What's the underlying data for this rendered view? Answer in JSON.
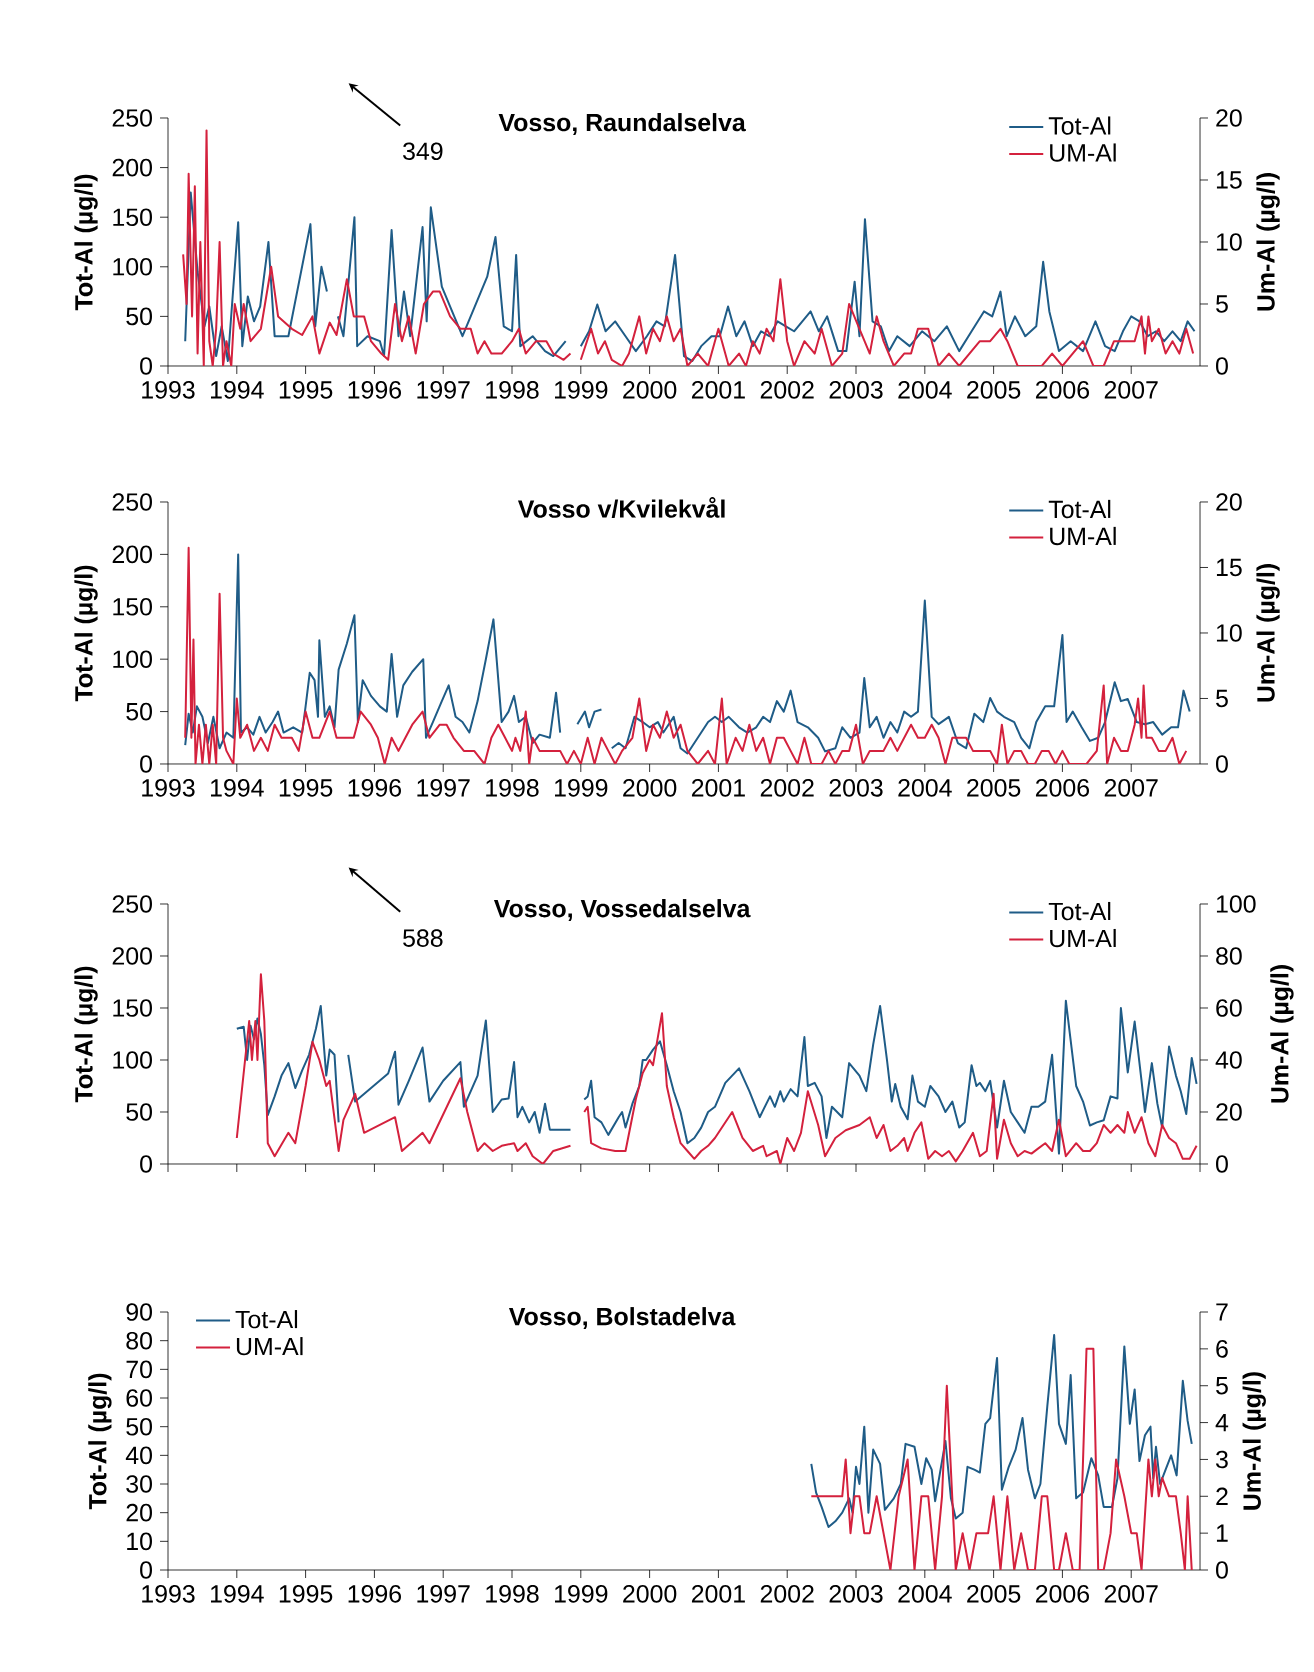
{
  "chart_data": [
    {
      "type": "line",
      "title": "Vosso, Raundalselva",
      "ylabel": "Tot-Al (µg/l)",
      "y2label": "Um-Al (µg/l)",
      "marker": "none",
      "legend": "top right",
      "xlim": [
        1993,
        2008
      ],
      "xticks": [
        1993,
        1994,
        1995,
        1996,
        1997,
        1998,
        1999,
        2000,
        2001,
        2002,
        2003,
        2004,
        2005,
        2006,
        2007
      ],
      "ylim": [
        0,
        250
      ],
      "yticks": [
        0,
        50,
        100,
        150,
        200,
        250
      ],
      "y2lim": [
        0,
        20
      ],
      "y2ticks": [
        0,
        5,
        10,
        15,
        20
      ],
      "annotations": [
        "349"
      ],
      "series": [
        {
          "name": "Tot-Al",
          "color": "#1f5c87",
          "x": [
            1993.25,
            1993.33,
            1993.43,
            1993.53,
            1993.6,
            1993.7,
            1993.78,
            1993.87,
            1994.02,
            1994.08,
            1994.16,
            1994.25,
            1994.34,
            1994.46,
            1994.55,
            1994.75,
            1995.07,
            1995.14,
            1995.23,
            1995.31,
            1995.38,
            1995.47,
            1995.55,
            1995.71,
            1995.75,
            1995.9,
            1996.08,
            1996.14,
            1996.25,
            1996.35,
            1996.43,
            1996.52,
            1996.7,
            1996.76,
            1996.82,
            1996.98,
            1997.16,
            1997.28,
            1997.46,
            1997.64,
            1997.76,
            1997.88,
            1998.0,
            1998.06,
            1998.12,
            1998.3,
            1998.48,
            1998.6,
            1998.78,
            1998.9,
            1999.0,
            1999.12,
            1999.24,
            1999.36,
            1999.5,
            1999.65,
            1999.8,
            1999.96,
            2000.1,
            2000.22,
            2000.37,
            2000.5,
            2000.62,
            2000.75,
            2000.9,
            2001.02,
            2001.14,
            2001.26,
            2001.38,
            2001.5,
            2001.62,
            2001.74,
            2001.86,
            2001.98,
            2002.1,
            2002.22,
            2002.34,
            2002.46,
            2002.58,
            2002.74,
            2002.86,
            2002.98,
            2003.05,
            2003.13,
            2003.24,
            2003.36,
            2003.48,
            2003.6,
            2003.78,
            2003.96,
            2004.14,
            2004.32,
            2004.5,
            2004.68,
            2004.86,
            2004.98,
            2005.1,
            2005.19,
            2005.31,
            2005.46,
            2005.62,
            2005.72,
            2005.81,
            2005.95,
            2006.12,
            2006.3,
            2006.48,
            2006.62,
            2006.76,
            2006.88,
            2007.0,
            2007.12,
            2007.24,
            2007.36,
            2007.48,
            2007.6,
            2007.72,
            2007.82,
            2007.92
          ],
          "values": [
            25,
            175,
            95,
            40,
            60,
            10,
            40,
            5,
            145,
            20,
            70,
            45,
            60,
            125,
            30,
            30,
            143,
            40,
            100,
            75,
            null,
            50,
            30,
            150,
            20,
            30,
            25,
            10,
            137,
            30,
            75,
            30,
            140,
            45,
            160,
            80,
            50,
            30,
            60,
            90,
            130,
            40,
            35,
            112,
            20,
            30,
            15,
            10,
            25,
            null,
            20,
            35,
            62,
            35,
            45,
            30,
            15,
            30,
            45,
            40,
            112,
            10,
            5,
            20,
            30,
            30,
            60,
            30,
            45,
            20,
            35,
            30,
            45,
            40,
            35,
            45,
            55,
            35,
            50,
            15,
            15,
            85,
            30,
            148,
            45,
            40,
            15,
            30,
            20,
            35,
            25,
            40,
            15,
            35,
            55,
            50,
            75,
            30,
            50,
            30,
            40,
            105,
            55,
            15,
            25,
            15,
            45,
            20,
            15,
            35,
            50,
            45,
            30,
            35,
            25,
            35,
            25,
            45,
            35
          ]
        },
        {
          "name": "UM-Al",
          "color": "#d4213d",
          "axis": "y2",
          "x": [
            1993.22,
            1993.27,
            1993.3,
            1993.35,
            1993.39,
            1993.43,
            1993.47,
            1993.52,
            1993.56,
            1993.6,
            1993.65,
            1993.7,
            1993.75,
            1993.8,
            1993.85,
            1993.92,
            1993.97,
            1994.05,
            1994.1,
            1994.2,
            1994.35,
            1994.5,
            1994.6,
            1994.8,
            1994.95,
            1995.1,
            1995.2,
            1995.35,
            1995.45,
            1995.6,
            1995.7,
            1995.85,
            1995.95,
            1996.1,
            1996.2,
            1996.3,
            1996.4,
            1996.5,
            1996.6,
            1996.72,
            1996.85,
            1996.95,
            1997.1,
            1997.25,
            1997.4,
            1997.5,
            1997.6,
            1997.7,
            1997.85,
            1998.0,
            1998.1,
            1998.2,
            1998.35,
            1998.5,
            1998.6,
            1998.75,
            1998.85,
            1998.92,
            1999.0,
            1999.15,
            1999.25,
            1999.35,
            1999.45,
            1999.6,
            1999.7,
            1999.85,
            1999.95,
            2000.05,
            2000.15,
            2000.25,
            2000.35,
            2000.45,
            2000.55,
            2000.7,
            2000.85,
            2001.0,
            2001.15,
            2001.3,
            2001.4,
            2001.5,
            2001.6,
            2001.7,
            2001.8,
            2001.9,
            2002.0,
            2002.1,
            2002.25,
            2002.4,
            2002.5,
            2002.65,
            2002.8,
            2002.9,
            2003.05,
            2003.2,
            2003.3,
            2003.4,
            2003.55,
            2003.7,
            2003.8,
            2003.9,
            2004.05,
            2004.2,
            2004.35,
            2004.5,
            2004.65,
            2004.8,
            2004.95,
            2005.1,
            2005.2,
            2005.35,
            2005.5,
            2005.7,
            2005.85,
            2006.0,
            2006.15,
            2006.3,
            2006.45,
            2006.6,
            2006.75,
            2006.9,
            2007.05,
            2007.15,
            2007.2,
            2007.25,
            2007.3,
            2007.4,
            2007.5,
            2007.6,
            2007.7,
            2007.8,
            2007.9
          ],
          "values": [
            9,
            5,
            15.5,
            4,
            14.5,
            1,
            10,
            0,
            19,
            2,
            0,
            3,
            10,
            0,
            2,
            0,
            5,
            3,
            5,
            2,
            3,
            8,
            4,
            3,
            2.5,
            4,
            1,
            3.5,
            2.5,
            7,
            4,
            4,
            2,
            1,
            0.5,
            5,
            2,
            4,
            1,
            5,
            6,
            6,
            4,
            3,
            3,
            1,
            2,
            1,
            1,
            2,
            3,
            1,
            2,
            2,
            1,
            0.5,
            1,
            null,
            0.5,
            3,
            1,
            2,
            0.5,
            0,
            1,
            4,
            1,
            3,
            2,
            4,
            2,
            3,
            0,
            1,
            0,
            3,
            0,
            1,
            0,
            2,
            1,
            3,
            2,
            7,
            2,
            0,
            2,
            1,
            3,
            0,
            1,
            5,
            3,
            1,
            4,
            2,
            0,
            1,
            1,
            3,
            3,
            0,
            1,
            0,
            1,
            2,
            2,
            3,
            2,
            0,
            0,
            0,
            1,
            0,
            1,
            2,
            0,
            0,
            2,
            2,
            2,
            4,
            1,
            4,
            2,
            3,
            1,
            2,
            1,
            3,
            1
          ]
        }
      ]
    },
    {
      "type": "line",
      "title": "Vosso v/Kvilekvål",
      "ylabel": "Tot-Al (µg/l)",
      "y2label": "Um-Al (µg/l)",
      "marker": "none",
      "legend": "top right",
      "xlim": [
        1993,
        2008
      ],
      "xticks": [
        1993,
        1994,
        1995,
        1996,
        1997,
        1998,
        1999,
        2000,
        2001,
        2002,
        2003,
        2004,
        2005,
        2006,
        2007
      ],
      "ylim": [
        0,
        250
      ],
      "yticks": [
        0,
        50,
        100,
        150,
        200,
        250
      ],
      "y2lim": [
        0,
        20
      ],
      "y2ticks": [
        0,
        5,
        10,
        15,
        20
      ],
      "series": [
        {
          "name": "Tot-Al",
          "color": "#1f5c87",
          "x": [
            1993.25,
            1993.3,
            1993.36,
            1993.42,
            1993.5,
            1993.58,
            1993.66,
            1993.75,
            1993.85,
            1993.95,
            1994.02,
            1994.06,
            1994.15,
            1994.24,
            1994.33,
            1994.42,
            1994.52,
            1994.6,
            1994.68,
            1994.82,
            1994.95,
            1995.0,
            1995.06,
            1995.13,
            1995.18,
            1995.2,
            1995.28,
            1995.35,
            1995.42,
            1995.48,
            1995.6,
            1995.71,
            1995.76,
            1995.83,
            1995.95,
            1996.08,
            1996.18,
            1996.25,
            1996.33,
            1996.42,
            1996.55,
            1996.71,
            1996.75,
            1996.85,
            1996.98,
            1997.08,
            1997.18,
            1997.28,
            1997.38,
            1997.5,
            1997.62,
            1997.73,
            1997.85,
            1997.95,
            1998.03,
            1998.1,
            1998.2,
            1998.3,
            1998.4,
            1998.55,
            1998.64,
            1998.7,
            1998.8,
            1998.95,
            1999.06,
            1999.12,
            1999.2,
            1999.3,
            1999.38,
            1999.45,
            1999.55,
            1999.65,
            1999.78,
            1999.9,
            2000.0,
            2000.12,
            2000.2,
            2000.35,
            2000.45,
            2000.55,
            2000.7,
            2000.85,
            2000.95,
            2001.05,
            2001.15,
            2001.3,
            2001.42,
            2001.55,
            2001.65,
            2001.75,
            2001.85,
            2001.95,
            2002.05,
            2002.15,
            2002.3,
            2002.45,
            2002.55,
            2002.7,
            2002.8,
            2002.92,
            2003.05,
            2003.12,
            2003.2,
            2003.3,
            2003.4,
            2003.5,
            2003.6,
            2003.7,
            2003.8,
            2003.9,
            2004.0,
            2004.1,
            2004.2,
            2004.35,
            2004.48,
            2004.6,
            2004.72,
            2004.85,
            2004.95,
            2005.05,
            2005.15,
            2005.3,
            2005.4,
            2005.52,
            2005.62,
            2005.75,
            2005.88,
            2006.0,
            2006.06,
            2006.15,
            2006.28,
            2006.4,
            2006.52,
            2006.62,
            2006.76,
            2006.85,
            2006.95,
            2007.08,
            2007.2,
            2007.32,
            2007.45,
            2007.58,
            2007.68,
            2007.76,
            2007.85
          ],
          "values": [
            18,
            48,
            30,
            55,
            45,
            20,
            45,
            15,
            30,
            25,
            200,
            30,
            35,
            28,
            45,
            30,
            40,
            50,
            30,
            35,
            30,
            55,
            87,
            80,
            45,
            118,
            45,
            55,
            35,
            90,
            115,
            142,
            40,
            80,
            65,
            55,
            50,
            105,
            45,
            75,
            88,
            100,
            25,
            40,
            60,
            75,
            45,
            40,
            30,
            60,
            100,
            138,
            40,
            50,
            65,
            40,
            45,
            20,
            28,
            25,
            68,
            30,
            null,
            38,
            50,
            35,
            50,
            52,
            null,
            15,
            20,
            15,
            45,
            40,
            35,
            40,
            30,
            45,
            15,
            10,
            25,
            40,
            45,
            40,
            45,
            35,
            30,
            35,
            45,
            40,
            60,
            50,
            70,
            40,
            35,
            25,
            12,
            15,
            35,
            25,
            30,
            82,
            35,
            45,
            25,
            40,
            30,
            50,
            45,
            50,
            156,
            45,
            38,
            45,
            20,
            15,
            48,
            40,
            63,
            50,
            45,
            40,
            25,
            15,
            40,
            55,
            55,
            123,
            40,
            50,
            35,
            22,
            25,
            40,
            78,
            60,
            62,
            40,
            38,
            40,
            28,
            35,
            35,
            70,
            50
          ]
        },
        {
          "name": "UM-Al",
          "color": "#d4213d",
          "axis": "y2",
          "x": [
            1993.25,
            1993.3,
            1993.34,
            1993.37,
            1993.4,
            1993.45,
            1993.5,
            1993.55,
            1993.6,
            1993.65,
            1993.7,
            1993.75,
            1993.8,
            1993.85,
            1993.95,
            1994.0,
            1994.05,
            1994.15,
            1994.25,
            1994.35,
            1994.45,
            1994.55,
            1994.65,
            1994.8,
            1994.9,
            1995.0,
            1995.1,
            1995.2,
            1995.35,
            1995.45,
            1995.55,
            1995.7,
            1995.8,
            1995.95,
            1996.05,
            1996.15,
            1996.25,
            1996.35,
            1996.45,
            1996.55,
            1996.7,
            1996.8,
            1996.95,
            1997.05,
            1997.15,
            1997.3,
            1997.45,
            1997.6,
            1997.7,
            1997.8,
            1997.9,
            1998.0,
            1998.05,
            1998.12,
            1998.2,
            1998.25,
            1998.3,
            1998.4,
            1998.55,
            1998.7,
            1998.8,
            1998.9,
            1999.0,
            1999.1,
            1999.2,
            1999.3,
            1999.4,
            1999.5,
            1999.6,
            1999.75,
            1999.85,
            1999.95,
            2000.05,
            2000.15,
            2000.25,
            2000.35,
            2000.45,
            2000.55,
            2000.7,
            2000.85,
            2000.95,
            2001.05,
            2001.12,
            2001.25,
            2001.35,
            2001.45,
            2001.55,
            2001.65,
            2001.75,
            2001.85,
            2001.95,
            2002.05,
            2002.15,
            2002.25,
            2002.35,
            2002.5,
            2002.6,
            2002.7,
            2002.8,
            2002.9,
            2003.0,
            2003.1,
            2003.2,
            2003.3,
            2003.4,
            2003.5,
            2003.6,
            2003.7,
            2003.8,
            2003.9,
            2004.0,
            2004.1,
            2004.2,
            2004.3,
            2004.4,
            2004.5,
            2004.6,
            2004.7,
            2004.8,
            2004.95,
            2005.05,
            2005.12,
            2005.2,
            2005.3,
            2005.4,
            2005.5,
            2005.6,
            2005.7,
            2005.8,
            2005.9,
            2006.0,
            2006.1,
            2006.2,
            2006.35,
            2006.5,
            2006.6,
            2006.65,
            2006.75,
            2006.85,
            2006.95,
            2007.05,
            2007.1,
            2007.15,
            2007.18,
            2007.22,
            2007.3,
            2007.4,
            2007.5,
            2007.6,
            2007.7,
            2007.8
          ],
          "values": [
            2,
            16.5,
            2,
            9.5,
            0,
            3,
            0,
            3,
            0,
            3,
            0,
            13,
            2,
            1,
            0,
            5,
            2,
            3,
            1,
            2,
            1,
            3,
            2,
            2,
            1,
            4,
            2,
            2,
            4,
            2,
            2,
            2,
            4,
            3,
            2,
            0,
            2,
            1,
            2,
            3,
            4,
            2,
            3,
            3,
            2,
            1,
            1,
            0,
            2,
            3,
            2,
            1,
            2,
            1,
            4,
            0,
            2,
            1,
            1,
            1,
            0,
            1,
            0,
            2,
            0,
            2,
            1,
            0,
            1,
            2,
            5,
            1,
            3,
            2,
            4,
            2,
            3,
            1,
            0,
            1,
            0,
            5,
            0,
            2,
            1,
            3,
            1,
            2,
            0,
            2,
            2,
            1,
            0,
            2,
            0,
            0,
            1,
            0,
            1,
            1,
            3,
            0,
            1,
            1,
            1,
            2,
            1,
            2,
            3,
            2,
            2,
            3,
            2,
            0,
            2,
            2,
            2,
            1,
            1,
            1,
            0,
            3,
            0,
            1,
            1,
            0,
            0,
            1,
            1,
            0,
            1,
            0,
            0,
            0,
            1,
            6,
            0,
            2,
            1,
            1,
            3,
            5,
            2,
            6,
            2,
            2,
            1,
            1,
            2,
            0,
            1
          ]
        }
      ]
    },
    {
      "type": "line",
      "title": "Vosso, Vossedalselva",
      "ylabel": "Tot-Al (µg/l)",
      "y2label": "Um-Al (µg/l)",
      "marker": "none",
      "legend": "top right",
      "tick_labels": "y",
      "xlim": [
        1993,
        2008
      ],
      "xticks": [
        1993,
        1994,
        1995,
        1996,
        1997,
        1998,
        1999,
        2000,
        2001,
        2002,
        2003,
        2004,
        2005,
        2006,
        2007,
        2008
      ],
      "ylim": [
        0,
        250
      ],
      "yticks": [
        0,
        50,
        100,
        150,
        200,
        250
      ],
      "y2lim": [
        0,
        100
      ],
      "y2ticks": [
        0,
        20,
        40,
        60,
        80,
        100
      ],
      "annotations": [
        "588"
      ],
      "series": [
        {
          "name": "Tot-Al",
          "color": "#1f5c87",
          "x": [
            1994.0,
            1994.1,
            1994.15,
            1994.2,
            1994.25,
            1994.3,
            1994.35,
            1994.4,
            1994.45,
            1994.55,
            1994.65,
            1994.75,
            1994.85,
            1994.95,
            1995.05,
            1995.15,
            1995.22,
            1995.27,
            1995.3,
            1995.35,
            1995.42,
            1995.48,
            1995.5,
            1995.62,
            1995.72,
            1996.2,
            1996.3,
            1996.35,
            1996.5,
            1996.7,
            1996.8,
            1997.0,
            1997.25,
            1997.3,
            1997.5,
            1997.62,
            1997.72,
            1997.85,
            1997.95,
            1998.03,
            1998.08,
            1998.15,
            1998.25,
            1998.33,
            1998.4,
            1998.48,
            1998.55,
            1998.85,
            1998.9,
            1999.05,
            1999.1,
            1999.15,
            1999.2,
            1999.3,
            1999.4,
            1999.55,
            1999.6,
            1999.65,
            1999.75,
            1999.85,
            1999.9,
            1999.95,
            2000.05,
            2000.15,
            2000.25,
            2000.35,
            2000.45,
            2000.55,
            2000.65,
            2000.75,
            2000.85,
            2000.95,
            2001.1,
            2001.2,
            2001.3,
            2001.45,
            2001.6,
            2001.75,
            2001.82,
            2001.9,
            2001.95,
            2002.05,
            2002.15,
            2002.25,
            2002.3,
            2002.4,
            2002.5,
            2002.57,
            2002.65,
            2002.8,
            2002.9,
            2003.05,
            2003.15,
            2003.25,
            2003.35,
            2003.45,
            2003.52,
            2003.57,
            2003.65,
            2003.75,
            2003.82,
            2003.9,
            2004.0,
            2004.08,
            2004.2,
            2004.3,
            2004.4,
            2004.5,
            2004.58,
            2004.68,
            2004.75,
            2004.8,
            2004.88,
            2004.95,
            2005.05,
            2005.15,
            2005.25,
            2005.35,
            2005.45,
            2005.55,
            2005.65,
            2005.75,
            2005.85,
            2005.95,
            2006.05,
            2006.2,
            2006.3,
            2006.4,
            2006.5,
            2006.6,
            2006.7,
            2006.8,
            2006.85,
            2006.95,
            2007.05,
            2007.15,
            2007.2,
            2007.3,
            2007.38,
            2007.45,
            2007.55,
            2007.65,
            2007.72,
            2007.8,
            2007.88,
            2007.95
          ],
          "values": [
            130,
            132,
            100,
            133,
            120,
            140,
            125,
            95,
            47,
            65,
            85,
            97,
            73,
            90,
            105,
            130,
            152,
            110,
            85,
            110,
            105,
            40,
            null,
            105,
            60,
            87,
            108,
            57,
            80,
            112,
            60,
            80,
            98,
            55,
            85,
            138,
            50,
            62,
            63,
            98,
            45,
            55,
            40,
            50,
            30,
            58,
            33,
            33,
            null,
            62,
            65,
            80,
            45,
            40,
            28,
            45,
            50,
            35,
            58,
            75,
            100,
            100,
            110,
            118,
            95,
            70,
            50,
            20,
            25,
            35,
            50,
            55,
            78,
            85,
            92,
            70,
            45,
            65,
            55,
            70,
            60,
            72,
            65,
            122,
            75,
            78,
            65,
            25,
            55,
            45,
            97,
            85,
            70,
            115,
            152,
            100,
            60,
            77,
            55,
            43,
            85,
            60,
            55,
            75,
            65,
            50,
            60,
            35,
            40,
            95,
            75,
            78,
            70,
            80,
            35,
            80,
            50,
            40,
            30,
            55,
            55,
            60,
            105,
            10,
            157,
            75,
            60,
            37,
            40,
            42,
            65,
            63,
            150,
            88,
            137,
            80,
            50,
            97,
            58,
            35,
            113,
            85,
            70,
            48,
            102,
            77
          ]
        },
        {
          "name": "UM-Al",
          "color": "#d4213d",
          "axis": "y2",
          "x": [
            1994.0,
            1994.12,
            1994.18,
            1994.22,
            1994.27,
            1994.3,
            1994.35,
            1994.4,
            1994.45,
            1994.55,
            1994.75,
            1994.85,
            1995.0,
            1995.1,
            1995.2,
            1995.3,
            1995.35,
            1995.48,
            1995.55,
            1995.72,
            1995.85,
            1996.3,
            1996.4,
            1996.7,
            1996.8,
            1997.25,
            1997.35,
            1997.5,
            1997.6,
            1997.72,
            1997.85,
            1998.03,
            1998.08,
            1998.2,
            1998.3,
            1998.45,
            1998.6,
            1998.85,
            1998.9,
            1999.05,
            1999.1,
            1999.15,
            1999.3,
            1999.5,
            1999.65,
            1999.8,
            1999.9,
            2000.0,
            2000.05,
            2000.18,
            2000.25,
            2000.35,
            2000.45,
            2000.55,
            2000.65,
            2000.75,
            2000.85,
            2000.95,
            2001.2,
            2001.35,
            2001.5,
            2001.65,
            2001.7,
            2001.85,
            2001.9,
            2002.0,
            2002.1,
            2002.2,
            2002.3,
            2002.45,
            2002.55,
            2002.7,
            2002.85,
            2003.05,
            2003.2,
            2003.3,
            2003.4,
            2003.5,
            2003.6,
            2003.7,
            2003.75,
            2003.85,
            2003.95,
            2004.05,
            2004.15,
            2004.25,
            2004.35,
            2004.45,
            2004.55,
            2004.7,
            2004.8,
            2004.9,
            2005.0,
            2005.05,
            2005.15,
            2005.25,
            2005.35,
            2005.45,
            2005.55,
            2005.65,
            2005.75,
            2005.85,
            2005.95,
            2006.05,
            2006.2,
            2006.3,
            2006.4,
            2006.5,
            2006.6,
            2006.7,
            2006.8,
            2006.9,
            2006.95,
            2007.05,
            2007.15,
            2007.25,
            2007.35,
            2007.45,
            2007.55,
            2007.65,
            2007.75,
            2007.85,
            2007.95
          ],
          "values": [
            10,
            40,
            55,
            40,
            55,
            40,
            73,
            55,
            8,
            3,
            12,
            8,
            30,
            47,
            40,
            30,
            32,
            5,
            17,
            27,
            12,
            18,
            5,
            12,
            8,
            33,
            20,
            5,
            8,
            5,
            7,
            8,
            5,
            8,
            3,
            0,
            5,
            7,
            null,
            20,
            22,
            8,
            6,
            5,
            5,
            25,
            35,
            40,
            38,
            58,
            30,
            18,
            8,
            5,
            2,
            5,
            7,
            10,
            20,
            10,
            5,
            7,
            3,
            5,
            0,
            10,
            5,
            12,
            28,
            15,
            3,
            10,
            13,
            15,
            18,
            10,
            15,
            5,
            7,
            10,
            5,
            12,
            16,
            2,
            5,
            3,
            5,
            1,
            5,
            12,
            3,
            5,
            27,
            2,
            17,
            8,
            3,
            5,
            4,
            6,
            8,
            5,
            17,
            3,
            8,
            5,
            5,
            8,
            15,
            12,
            15,
            12,
            20,
            12,
            18,
            8,
            3,
            15,
            10,
            8,
            2,
            2,
            7
          ]
        }
      ]
    },
    {
      "type": "line",
      "title": "Vosso, Bolstadelva",
      "ylabel": "Tot-Al (µg/l)",
      "y2label": "Um-Al (µg/l)",
      "marker": "none",
      "legend": "top left",
      "xlim": [
        1993,
        2008
      ],
      "xticks": [
        1993,
        1994,
        1995,
        1996,
        1997,
        1998,
        1999,
        2000,
        2001,
        2002,
        2003,
        2004,
        2005,
        2006,
        2007
      ],
      "ylim": [
        0,
        90
      ],
      "yticks": [
        0,
        10,
        20,
        30,
        40,
        50,
        60,
        70,
        80,
        90
      ],
      "y2lim": [
        0,
        7
      ],
      "y2ticks": [
        0,
        1,
        2,
        3,
        4,
        5,
        6,
        7
      ],
      "series": [
        {
          "name": "Tot-Al",
          "color": "#1f5c87",
          "x": [
            2002.35,
            2002.42,
            2002.5,
            2002.6,
            2002.7,
            2002.8,
            2002.9,
            2002.95,
            2003.0,
            2003.05,
            2003.12,
            2003.18,
            2003.25,
            2003.35,
            2003.42,
            2003.55,
            2003.65,
            2003.72,
            2003.85,
            2003.95,
            2004.02,
            2004.1,
            2004.15,
            2004.25,
            2004.3,
            2004.38,
            2004.45,
            2004.55,
            2004.62,
            2004.72,
            2004.8,
            2004.88,
            2004.95,
            2005.05,
            2005.12,
            2005.22,
            2005.32,
            2005.42,
            2005.5,
            2005.6,
            2005.68,
            2005.78,
            2005.88,
            2005.95,
            2006.05,
            2006.12,
            2006.2,
            2006.3,
            2006.42,
            2006.52,
            2006.6,
            2006.72,
            2006.8,
            2006.9,
            2006.98,
            2007.05,
            2007.12,
            2007.2,
            2007.28,
            2007.32,
            2007.36,
            2007.42,
            2007.5,
            2007.58,
            2007.66,
            2007.75,
            2007.82,
            2007.88
          ],
          "values": [
            37,
            27,
            22,
            15,
            17,
            20,
            25,
            20,
            36,
            30,
            50,
            20,
            42,
            37,
            21,
            25,
            30,
            44,
            43,
            30,
            39,
            35,
            24,
            38,
            45,
            25,
            18,
            20,
            36,
            35,
            34,
            51,
            53,
            74,
            28,
            36,
            42,
            53,
            35,
            25,
            30,
            57,
            82,
            51,
            44,
            68,
            25,
            27,
            39,
            33,
            22,
            22,
            32,
            78,
            51,
            63,
            38,
            47,
            50,
            32,
            43,
            30,
            35,
            40,
            33,
            66,
            52,
            44
          ]
        },
        {
          "name": "UM-Al",
          "color": "#d4213d",
          "axis": "y2",
          "x": [
            2002.35,
            2002.8,
            2002.85,
            2002.92,
            2002.98,
            2003.05,
            2003.12,
            2003.2,
            2003.3,
            2003.4,
            2003.5,
            2003.62,
            2003.75,
            2003.85,
            2003.95,
            2004.05,
            2004.15,
            2004.25,
            2004.32,
            2004.45,
            2004.55,
            2004.65,
            2004.75,
            2004.85,
            2004.92,
            2005.0,
            2005.1,
            2005.2,
            2005.3,
            2005.4,
            2005.5,
            2005.6,
            2005.7,
            2005.78,
            2005.88,
            2005.95,
            2006.05,
            2006.15,
            2006.25,
            2006.35,
            2006.45,
            2006.52,
            2006.6,
            2006.7,
            2006.78,
            2006.9,
            2007.0,
            2007.08,
            2007.15,
            2007.25,
            2007.3,
            2007.35,
            2007.4,
            2007.45,
            2007.55,
            2007.65,
            2007.72,
            2007.78,
            2007.82,
            2007.88
          ],
          "values": [
            2,
            2,
            3,
            1,
            2,
            2,
            1,
            1,
            2,
            1,
            0,
            2,
            3,
            0,
            2,
            2,
            0,
            2,
            5,
            0,
            1,
            0,
            1,
            1,
            1,
            2,
            0,
            2,
            0,
            1,
            0,
            0,
            2,
            2,
            0,
            0,
            1,
            0,
            0,
            6,
            6,
            0,
            0,
            1,
            3,
            2,
            1,
            1,
            0,
            3,
            2,
            3,
            2,
            2.5,
            2,
            2,
            1,
            0,
            2,
            0
          ]
        }
      ]
    }
  ]
}
